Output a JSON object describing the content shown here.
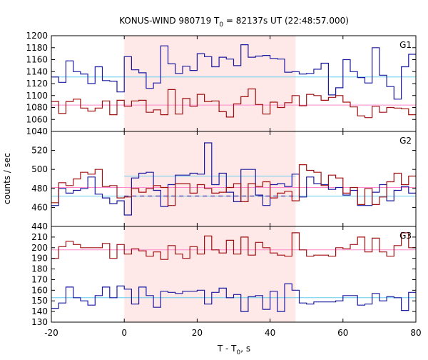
{
  "chart_data": {
    "type": "line",
    "title": "KONUS-WIND 980719 T",
    "title_sub": "0",
    "title_rest": " = 82137s UT (22:48:57.000)",
    "xlabel": "T - T",
    "xlabel_sub": "0",
    "xlabel_rest": ", s",
    "ylabel": "counts / sec",
    "xlim": [
      -20,
      80
    ],
    "x_ticks": [
      "-20",
      "0",
      "20",
      "40",
      "60",
      "80"
    ],
    "shaded_interval": [
      0,
      47
    ],
    "colors": {
      "shade": "#ffe8e8",
      "high_series": "#a01010",
      "low_series": "#1a1aa0",
      "high_bg": "#ff88cc",
      "low_bg": "#66ccee"
    },
    "panels": [
      {
        "label": "G1",
        "ylim": [
          1040,
          1200
        ],
        "y_ticks": [
          "1040",
          "1060",
          "1080",
          "1100",
          "1120",
          "1140",
          "1160",
          "1180",
          "1200"
        ],
        "series": [
          {
            "color_key": "low_series",
            "x": [
              -20,
              -18,
              -16,
              -14,
              -12,
              -10,
              -8,
              -6,
              -4,
              -2,
              0,
              2,
              4,
              6,
              8,
              10,
              12,
              14,
              16,
              18,
              20,
              22,
              24,
              26,
              28,
              30,
              32,
              34,
              36,
              38,
              40,
              42,
              44,
              46,
              48,
              50,
              52,
              54,
              56,
              58,
              60,
              62,
              64,
              66,
              68,
              70,
              72,
              74,
              76,
              78
            ],
            "y": [
              1131,
              1122,
              1158,
              1140,
              1136,
              1120,
              1148,
              1125,
              1124,
              1106,
              1165,
              1143,
              1138,
              1112,
              1121,
              1183,
              1153,
              1137,
              1149,
              1142,
              1170,
              1165,
              1148,
              1164,
              1161,
              1150,
              1185,
              1164,
              1166,
              1167,
              1162,
              1161,
              1139,
              1140,
              1136,
              1137,
              1144,
              1154,
              1101,
              1113,
              1160,
              1140,
              1130,
              1121,
              1180,
              1134,
              1115,
              1094,
              1148,
              1169
            ]
          },
          {
            "color_key": "high_series",
            "x": [
              -20,
              -18,
              -16,
              -14,
              -12,
              -10,
              -8,
              -6,
              -4,
              -2,
              0,
              2,
              4,
              6,
              8,
              10,
              12,
              14,
              16,
              18,
              20,
              22,
              24,
              26,
              28,
              30,
              32,
              34,
              36,
              38,
              40,
              42,
              44,
              46,
              48,
              50,
              52,
              54,
              56,
              58,
              60,
              62,
              64,
              66,
              68,
              70,
              72,
              74,
              76,
              78
            ],
            "y": [
              1090,
              1070,
              1090,
              1094,
              1079,
              1074,
              1079,
              1091,
              1068,
              1092,
              1082,
              1091,
              1092,
              1072,
              1076,
              1068,
              1110,
              1069,
              1095,
              1082,
              1102,
              1090,
              1091,
              1073,
              1064,
              1086,
              1098,
              1111,
              1085,
              1069,
              1089,
              1080,
              1088,
              1100,
              1083,
              1102,
              1100,
              1092,
              1097,
              1100,
              1089,
              1081,
              1066,
              1063,
              1082,
              1072,
              1080,
              1079,
              1078,
              1068
            ]
          }
        ],
        "background_levels": [
          {
            "color_key": "low_bg",
            "y": 1131
          },
          {
            "color_key": "high_bg",
            "y": 1084
          }
        ]
      },
      {
        "label": "G2",
        "ylim": [
          440,
          540
        ],
        "y_ticks": [
          "440",
          "460",
          "480",
          "500",
          "520"
        ],
        "series": [
          {
            "color_key": "low_series",
            "x": [
              -20,
              -18,
              -16,
              -14,
              -12,
              -10,
              -8,
              -6,
              -4,
              -2,
              0,
              2,
              4,
              6,
              8,
              10,
              12,
              14,
              16,
              18,
              20,
              22,
              24,
              26,
              28,
              30,
              32,
              34,
              36,
              38,
              40,
              42,
              44,
              46,
              48,
              50,
              52,
              54,
              56,
              58,
              60,
              62,
              64,
              66,
              68,
              70,
              72,
              74,
              76,
              78
            ],
            "y": [
              462,
              480,
              475,
              478,
              480,
              492,
              474,
              470,
              464,
              467,
              452,
              491,
              496,
              497,
              478,
              461,
              484,
              494,
              494,
              496,
              495,
              528,
              484,
              496,
              476,
              466,
              500,
              500,
              473,
              462,
              484,
              485,
              482,
              495,
              471,
              492,
              485,
              484,
              479,
              481,
              473,
              478,
              462,
              462,
              476,
              484,
              467,
              478,
              482,
              475
            ]
          },
          {
            "color_key": "high_series",
            "x": [
              -20,
              -18,
              -16,
              -14,
              -12,
              -10,
              -8,
              -6,
              -4,
              -2,
              0,
              2,
              4,
              6,
              8,
              10,
              12,
              14,
              16,
              18,
              20,
              22,
              24,
              26,
              28,
              30,
              32,
              34,
              36,
              38,
              40,
              42,
              44,
              46,
              48,
              50,
              52,
              54,
              56,
              58,
              60,
              62,
              64,
              66,
              68,
              70,
              72,
              74,
              76,
              78
            ],
            "y": [
              465,
              486,
              483,
              490,
              497,
              495,
              500,
              482,
              483,
              470,
              471,
              480,
              476,
              480,
              483,
              481,
              462,
              485,
              485,
              475,
              484,
              480,
              475,
              476,
              481,
              485,
              466,
              485,
              482,
              487,
              470,
              475,
              477,
              467,
              505,
              499,
              497,
              483,
              494,
              491,
              475,
              481,
              463,
              480,
              463,
              471,
              487,
              496,
              484,
              493
            ]
          }
        ],
        "background_levels": [
          {
            "color_key": "low_bg",
            "y": 472
          },
          {
            "color_key": "high_bg",
            "y": 481
          }
        ],
        "dashed_level": {
          "color_key": "low_series",
          "y": 472,
          "x": [
            0,
            47
          ]
        },
        "fit_level": {
          "color_key": "low_bg",
          "y": 493,
          "x": [
            0,
            47
          ]
        }
      },
      {
        "label": "G3",
        "ylim": [
          130,
          220
        ],
        "y_ticks": [
          "130",
          "140",
          "150",
          "160",
          "170",
          "180",
          "190",
          "200",
          "210"
        ],
        "series": [
          {
            "color_key": "high_series",
            "x": [
              -20,
              -18,
              -16,
              -14,
              -12,
              -10,
              -8,
              -6,
              -4,
              -2,
              0,
              2,
              4,
              6,
              8,
              10,
              12,
              14,
              16,
              18,
              20,
              22,
              24,
              26,
              28,
              30,
              32,
              34,
              36,
              38,
              40,
              42,
              44,
              46,
              48,
              50,
              52,
              54,
              56,
              58,
              60,
              62,
              64,
              66,
              68,
              70,
              72,
              74,
              76,
              78
            ],
            "y": [
              190,
              201,
              206,
              203,
              200,
              200,
              200,
              204,
              190,
              203,
              194,
              199,
              197,
              192,
              196,
              189,
              202,
              194,
              190,
              201,
              194,
              211,
              198,
              195,
              207,
              194,
              210,
              193,
              205,
              200,
              195,
              193,
              192,
              214,
              198,
              192,
              193,
              193,
              192,
              200,
              199,
              203,
              210,
              196,
              209,
              196,
              192,
              202,
              214,
              200
            ]
          },
          {
            "color_key": "low_series",
            "x": [
              -20,
              -18,
              -16,
              -14,
              -12,
              -10,
              -8,
              -6,
              -4,
              -2,
              0,
              2,
              4,
              6,
              8,
              10,
              12,
              14,
              16,
              18,
              20,
              22,
              24,
              26,
              28,
              30,
              32,
              34,
              36,
              38,
              40,
              42,
              44,
              46,
              48,
              50,
              52,
              54,
              56,
              58,
              60,
              62,
              64,
              66,
              68,
              70,
              72,
              74,
              76,
              78
            ],
            "y": [
              143,
              148,
              163,
              153,
              150,
              146,
              155,
              163,
              153,
              164,
              161,
              147,
              163,
              155,
              144,
              159,
              158,
              157,
              159,
              159,
              160,
              147,
              158,
              162,
              153,
              156,
              140,
              154,
              155,
              142,
              159,
              140,
              166,
              160,
              148,
              147,
              149,
              149,
              149,
              150,
              155,
              155,
              146,
              147,
              157,
              150,
              154,
              153,
              141,
              158
            ]
          }
        ],
        "background_levels": [
          {
            "color_key": "high_bg",
            "y": 198
          },
          {
            "color_key": "low_bg",
            "y": 153
          }
        ]
      }
    ]
  }
}
